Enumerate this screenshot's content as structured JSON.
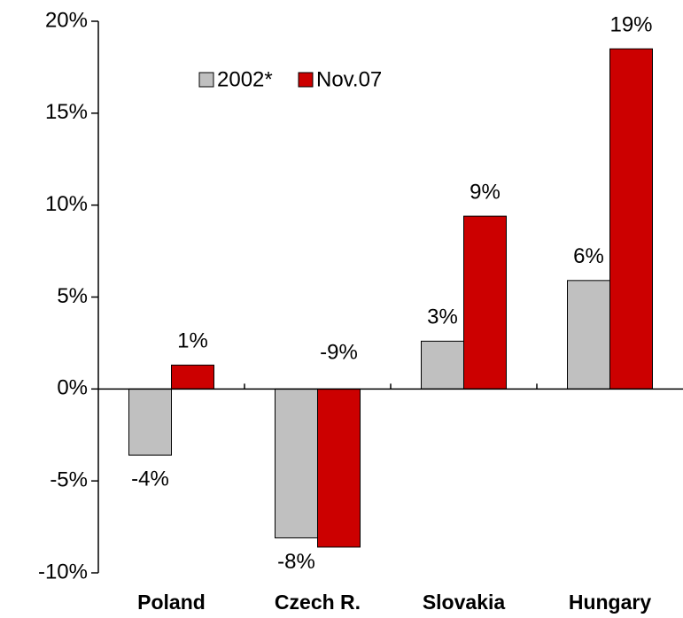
{
  "chart_data": {
    "type": "bar",
    "categories": [
      "Poland",
      "Czech R.",
      "Slovakia",
      "Hungary"
    ],
    "series": [
      {
        "name": "2002*",
        "color": "#c0c0c0",
        "values": [
          -3.6,
          -8.1,
          2.6,
          5.9
        ],
        "value_labels": [
          "-4%",
          "-8%",
          "3%",
          "6%"
        ]
      },
      {
        "name": "Nov.07",
        "color": "#cc0000",
        "values": [
          1.3,
          -8.6,
          9.4,
          18.5
        ],
        "value_labels": [
          "1%",
          "-9%",
          "9%",
          "19%"
        ]
      }
    ],
    "ylim": [
      -10,
      20
    ],
    "yticks": [
      {
        "value": -10,
        "label": "-10%"
      },
      {
        "value": -5,
        "label": "-5%"
      },
      {
        "value": 0,
        "label": "0%"
      },
      {
        "value": 5,
        "label": "5%"
      },
      {
        "value": 10,
        "label": "10%"
      },
      {
        "value": 15,
        "label": "15%"
      },
      {
        "value": 20,
        "label": "20%"
      }
    ],
    "grid": false,
    "legend": "top-left"
  }
}
